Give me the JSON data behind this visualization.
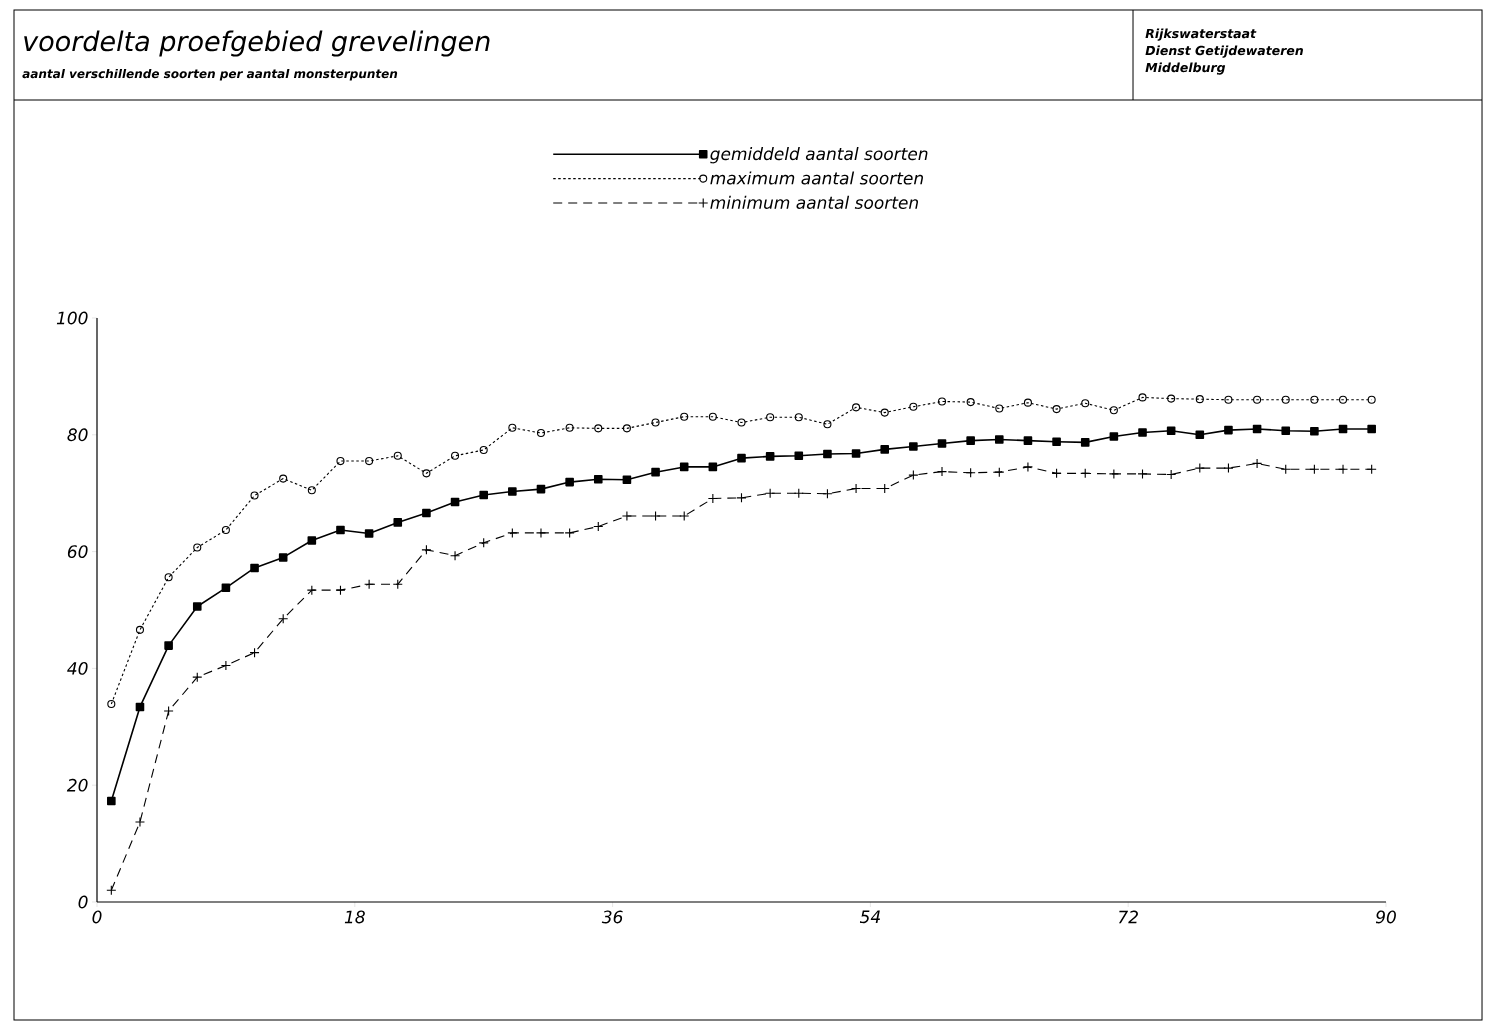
{
  "chart_data": {
    "type": "line",
    "title": "voordelta proefgebied grevelingen",
    "subtitle": "aantal verschillende soorten per aantal monsterpunten",
    "annotations": [
      "Rijkswaterstaat",
      "Dienst Getijdewateren",
      "Middelburg"
    ],
    "x": [
      1,
      3,
      5,
      7,
      9,
      11,
      13,
      15,
      17,
      19,
      21,
      23,
      25,
      27,
      29,
      31,
      33,
      35,
      37,
      39,
      41,
      43,
      45,
      47,
      49,
      51,
      53,
      55,
      57,
      59,
      61,
      63,
      65,
      67,
      69,
      71,
      73,
      75,
      77,
      79,
      81,
      83,
      85,
      87,
      89
    ],
    "series": [
      {
        "name": "gemiddeld aantal soorten",
        "color": "#000000",
        "marker": "square",
        "line_style": "solid",
        "values": [
          17.3,
          33.4,
          43.9,
          50.6,
          53.8,
          57.2,
          59,
          61.9,
          63.7,
          63.1,
          65,
          66.6,
          68.5,
          69.7,
          70.3,
          70.7,
          71.9,
          72.4,
          72.3,
          73.6,
          74.5,
          74.5,
          76.0,
          76.3,
          76.4,
          76.7,
          76.8,
          77.5,
          78.0,
          78.5,
          79.0,
          79.2,
          79.0,
          78.8,
          78.7,
          79.7,
          80.4,
          80.7,
          80.0,
          80.8,
          81.0,
          80.7,
          80.6,
          81.0,
          81.0
        ]
      },
      {
        "name": "maximum aantal soorten",
        "color": "#000000",
        "marker": "circle",
        "line_style": "dotted",
        "values": [
          33.9,
          46.6,
          55.6,
          60.7,
          63.7,
          69.6,
          72.5,
          70.5,
          75.5,
          75.5,
          76.4,
          73.4,
          76.4,
          77.4,
          81.2,
          80.3,
          81.2,
          81.1,
          81.1,
          82.1,
          83.1,
          83.1,
          82.1,
          83.0,
          83.0,
          81.8,
          84.7,
          83.8,
          84.8,
          85.7,
          85.6,
          84.5,
          85.5,
          84.4,
          85.4,
          84.2,
          86.4,
          86.2,
          86.1,
          86.0,
          86.0,
          86.0,
          86.0,
          86.0,
          86.0
        ]
      },
      {
        "name": "minimum aantal soorten",
        "color": "#000000",
        "marker": "cross",
        "line_style": "dashed",
        "values": [
          2,
          13.7,
          32.7,
          38.5,
          40.5,
          42.7,
          48.5,
          53.4,
          53.4,
          54.4,
          54.4,
          60.3,
          59.3,
          61.5,
          63.2,
          63.2,
          63.2,
          64.3,
          66.1,
          66.1,
          66.1,
          69.1,
          69.2,
          70.0,
          70.0,
          69.9,
          70.8,
          70.8,
          73.1,
          73.7,
          73.5,
          73.6,
          74.5,
          73.4,
          73.4,
          73.3,
          73.3,
          73.2,
          74.3,
          74.3,
          75.1,
          74.1,
          74.1,
          74.1,
          74.1
        ]
      }
    ],
    "xlim": [
      0,
      90
    ],
    "xticks": [
      0,
      18,
      36,
      54,
      72,
      90
    ],
    "ylim": [
      0,
      100
    ],
    "yticks": [
      0,
      20,
      40,
      60,
      80,
      100
    ],
    "grid": false,
    "legend": "top"
  }
}
